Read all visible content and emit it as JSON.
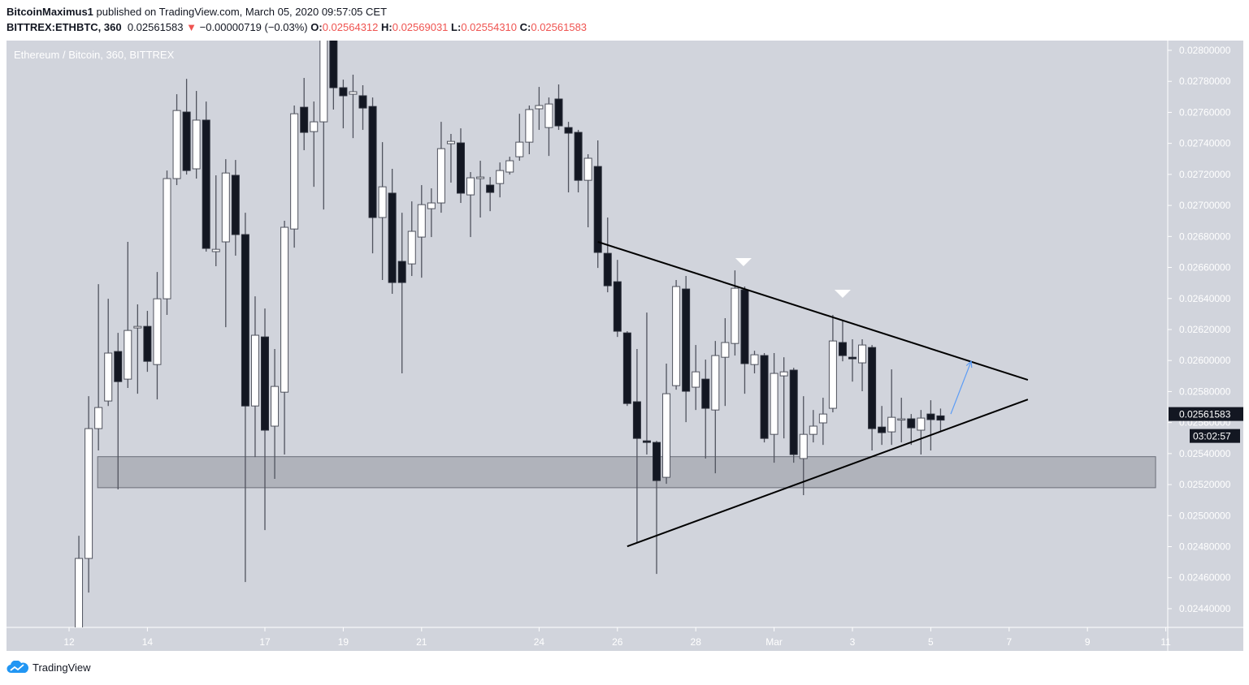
{
  "header": {
    "author": "BitcoinMaximus1",
    "published_text": "published on TradingView.com, March 05, 2020 09:57:05 CET",
    "symbol": "BITTREX:ETHBTC, 360",
    "last_price": "0.02561583",
    "change": "−0.00000719 (−0.03%)",
    "change_direction": "down",
    "ohlc": {
      "o_label": "O:",
      "o": "0.02564312",
      "h_label": "H:",
      "h": "0.02569031",
      "l_label": "L:",
      "l": "0.02554310",
      "c_label": "C:",
      "c": "0.02561583"
    }
  },
  "footer": {
    "brand": "TradingView",
    "icon": "tradingview-cloud-icon"
  },
  "colors": {
    "plot_bg": "#d1d4dc",
    "up_fill": "#ffffff",
    "down_fill": "#131722",
    "wick": "#50535e",
    "zone": "#9598a1",
    "trend": "#000000",
    "arrow": "#5b9cf6",
    "change_red": "#ef5350"
  },
  "chart_data": {
    "type": "candlestick",
    "title": "Ethereum / Bitcoin, 360, BITTREX",
    "interval_minutes": 360,
    "first_candle": "2020-02-12 06:00",
    "ylim": [
      0.0243,
      0.02806
    ],
    "y_ticks": [
      "0.02440000",
      "0.02460000",
      "0.02480000",
      "0.02500000",
      "0.02520000",
      "0.02540000",
      "0.02560000",
      "0.02580000",
      "0.02600000",
      "0.02620000",
      "0.02640000",
      "0.02660000",
      "0.02680000",
      "0.02700000",
      "0.02720000",
      "0.02740000",
      "0.02760000",
      "0.02780000",
      "0.02800000"
    ],
    "x_ticks": [
      {
        "label": "12",
        "date": "2020-02-12"
      },
      {
        "label": "14",
        "date": "2020-02-14"
      },
      {
        "label": "17",
        "date": "2020-02-17"
      },
      {
        "label": "19",
        "date": "2020-02-19"
      },
      {
        "label": "21",
        "date": "2020-02-21"
      },
      {
        "label": "24",
        "date": "2020-02-24"
      },
      {
        "label": "26",
        "date": "2020-02-26"
      },
      {
        "label": "28",
        "date": "2020-02-28"
      },
      {
        "label": "Mar",
        "date": "2020-03-01"
      },
      {
        "label": "3",
        "date": "2020-03-03"
      },
      {
        "label": "5",
        "date": "2020-03-05"
      },
      {
        "label": "7",
        "date": "2020-03-07"
      },
      {
        "label": "9",
        "date": "2020-03-09"
      },
      {
        "label": "11",
        "date": "2020-03-11"
      }
    ],
    "current_price_label": "0.02561583",
    "countdown": "03:02:57",
    "ohlc_columns": [
      "open",
      "high",
      "low",
      "close"
    ],
    "candles": [
      [
        0.02419,
        0.02487,
        0.024138,
        0.024724
      ],
      [
        0.024724,
        0.02577,
        0.024504,
        0.025561
      ],
      [
        0.025561,
        0.026492,
        0.02542,
        0.025697
      ],
      [
        0.025739,
        0.026398,
        0.025707,
        0.026048
      ],
      [
        0.026058,
        0.026178,
        0.025169,
        0.025864
      ],
      [
        0.02588,
        0.026765,
        0.025823,
        0.026194
      ],
      [
        0.02621,
        0.026362,
        0.025786,
        0.02622
      ],
      [
        0.02622,
        0.02632,
        0.025927,
        0.025995
      ],
      [
        0.025974,
        0.026571,
        0.025749,
        0.026398
      ],
      [
        0.026398,
        0.027225,
        0.026294,
        0.027173
      ],
      [
        0.027173,
        0.027717,
        0.027131,
        0.027612
      ],
      [
        0.027602,
        0.027816,
        0.027199,
        0.027225
      ],
      [
        0.027236,
        0.027738,
        0.027173,
        0.02755
      ],
      [
        0.02755,
        0.02767,
        0.026702,
        0.026723
      ],
      [
        0.026702,
        0.027194,
        0.026608,
        0.026717
      ],
      [
        0.026765,
        0.027298,
        0.026215,
        0.027209
      ],
      [
        0.027194,
        0.027293,
        0.026676,
        0.026812
      ],
      [
        0.026812,
        0.026953,
        0.024572,
        0.025707
      ],
      [
        0.025707,
        0.026414,
        0.025378,
        0.026163
      ],
      [
        0.026152,
        0.026335,
        0.024907,
        0.025551
      ],
      [
        0.025577,
        0.026074,
        0.025237,
        0.025833
      ],
      [
        0.025796,
        0.026901,
        0.025394,
        0.026859
      ],
      [
        0.026848,
        0.027644,
        0.026728,
        0.027591
      ],
      [
        0.027633,
        0.027822,
        0.027356,
        0.027471
      ],
      [
        0.027476,
        0.02767,
        0.02712,
        0.027539
      ],
      [
        0.027539,
        0.028219,
        0.026974,
        0.028089
      ],
      [
        0.028115,
        0.028219,
        0.027618,
        0.027759
      ],
      [
        0.027759,
        0.027811,
        0.027497,
        0.027707
      ],
      [
        0.027717,
        0.027843,
        0.027434,
        0.027733
      ],
      [
        0.027707,
        0.027775,
        0.027487,
        0.027628
      ],
      [
        0.027638,
        0.027696,
        0.026691,
        0.026922
      ],
      [
        0.026922,
        0.027408,
        0.026519,
        0.02712
      ],
      [
        0.027079,
        0.027236,
        0.02643,
        0.026503
      ],
      [
        0.026639,
        0.026953,
        0.025917,
        0.026503
      ],
      [
        0.026623,
        0.027026,
        0.026545,
        0.026833
      ],
      [
        0.026796,
        0.027131,
        0.026534,
        0.027005
      ],
      [
        0.026979,
        0.02711,
        0.026796,
        0.027016
      ],
      [
        0.027016,
        0.027539,
        0.026953,
        0.027366
      ],
      [
        0.027398,
        0.027461,
        0.027147,
        0.027413
      ],
      [
        0.027403,
        0.027497,
        0.027016,
        0.027079
      ],
      [
        0.027068,
        0.027215,
        0.026796,
        0.027178
      ],
      [
        0.027173,
        0.027288,
        0.026922,
        0.027183
      ],
      [
        0.027131,
        0.027183,
        0.026963,
        0.027084
      ],
      [
        0.027141,
        0.027277,
        0.027052,
        0.027225
      ],
      [
        0.027215,
        0.027314,
        0.027199,
        0.027288
      ],
      [
        0.027314,
        0.027591,
        0.027288,
        0.027408
      ],
      [
        0.027408,
        0.027644,
        0.02733,
        0.027618
      ],
      [
        0.027623,
        0.027764,
        0.027487,
        0.027644
      ],
      [
        0.027502,
        0.027696,
        0.027319,
        0.027654
      ],
      [
        0.027686,
        0.02778,
        0.027487,
        0.027513
      ],
      [
        0.027502,
        0.027539,
        0.027084,
        0.027466
      ],
      [
        0.027471,
        0.027487,
        0.027084,
        0.027162
      ],
      [
        0.027162,
        0.02733,
        0.026859,
        0.027304
      ],
      [
        0.027251,
        0.027419,
        0.026597,
        0.026697
      ],
      [
        0.026691,
        0.026922,
        0.02644,
        0.026482
      ],
      [
        0.026508,
        0.026649,
        0.026152,
        0.026189
      ],
      [
        0.026178,
        0.026189,
        0.025707,
        0.025723
      ],
      [
        0.025734,
        0.026074,
        0.024828,
        0.025498
      ],
      [
        0.025482,
        0.026309,
        0.025394,
        0.025472
      ],
      [
        0.025472,
        0.025482,
        0.024624,
        0.025226
      ],
      [
        0.025247,
        0.02598,
        0.025205,
        0.025786
      ],
      [
        0.025838,
        0.026519,
        0.025812,
        0.026477
      ],
      [
        0.026461,
        0.026545,
        0.025603,
        0.025802
      ],
      [
        0.025828,
        0.0261,
        0.025681,
        0.025927
      ],
      [
        0.02588,
        0.026006,
        0.025368,
        0.025692
      ],
      [
        0.025681,
        0.026126,
        0.025273,
        0.026032
      ],
      [
        0.026021,
        0.026273,
        0.025707,
        0.026116
      ],
      [
        0.02611,
        0.026581,
        0.026032,
        0.026466
      ],
      [
        0.026456,
        0.026477,
        0.025786,
        0.02598
      ],
      [
        0.025974,
        0.026063,
        0.025917,
        0.026037
      ],
      [
        0.026032,
        0.026048,
        0.025472,
        0.025498
      ],
      [
        0.025524,
        0.026048,
        0.025341,
        0.025917
      ],
      [
        0.025901,
        0.026021,
        0.025498,
        0.025927
      ],
      [
        0.025938,
        0.025953,
        0.025341,
        0.025394
      ],
      [
        0.025368,
        0.02577,
        0.025132,
        0.025524
      ],
      [
        0.025524,
        0.025681,
        0.025472,
        0.025577
      ],
      [
        0.025598,
        0.02576,
        0.025456,
        0.025655
      ],
      [
        0.025692,
        0.026294,
        0.025666,
        0.026126
      ],
      [
        0.026116,
        0.026257,
        0.025995,
        0.026032
      ],
      [
        0.026021,
        0.026137,
        0.025864,
        0.026011
      ],
      [
        0.025985,
        0.026137,
        0.025802,
        0.0261
      ],
      [
        0.026084,
        0.0261,
        0.02542,
        0.025561
      ],
      [
        0.025571,
        0.025707,
        0.025456,
        0.025535
      ],
      [
        0.02554,
        0.025943,
        0.025456,
        0.025634
      ],
      [
        0.025619,
        0.02576,
        0.025472,
        0.025624
      ],
      [
        0.025624,
        0.025655,
        0.025456,
        0.025566
      ],
      [
        0.025551,
        0.025681,
        0.025394,
        0.025629
      ],
      [
        0.025655,
        0.025744,
        0.02542,
        0.025619
      ],
      [
        0.02564312,
        0.02569031,
        0.0255431,
        0.02561583
      ]
    ],
    "annotations": {
      "support_zone": {
        "from": "2020-02-12 17:30",
        "to": "2020-03-10 17:45",
        "top": 0.02538,
        "bottom": 0.02518
      },
      "upper_trendline": [
        {
          "t": "2020-02-25 12:00",
          "p": 0.026765
        },
        {
          "t": "2020-03-07 11:30",
          "p": 0.025875
        }
      ],
      "lower_trendline": [
        {
          "t": "2020-02-26 06:00",
          "p": 0.024802
        },
        {
          "t": "2020-03-07 11:30",
          "p": 0.025749
        }
      ],
      "rejection_markers": [
        {
          "t": "2020-02-29 05:15",
          "p": 0.026634
        },
        {
          "t": "2020-03-02 18:00",
          "p": 0.02643
        }
      ],
      "projection_arrow": [
        {
          "t": "2020-03-05 12:15",
          "p": 0.025655
        },
        {
          "t": "2020-03-06 00:45",
          "p": 0.025995
        }
      ]
    }
  }
}
